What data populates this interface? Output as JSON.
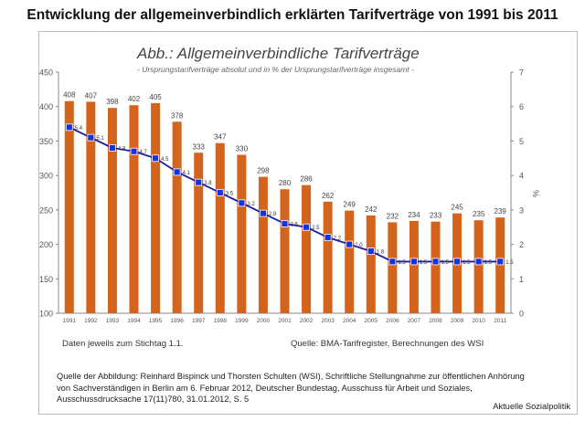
{
  "page": {
    "title": "Entwicklung der allgemeinverbindlich erklärten Tarifverträge von 1991 bis 2011",
    "brand": "Aktuelle Sozialpolitik"
  },
  "figure": {
    "title": "Abb.: Allgemeinverbindliche Tarifverträge",
    "subtitle": "- Ursprungstarifverträge absolut und in % der Ursprungstarifverträge insgesamt -",
    "note_left": "Daten jeweils zum Stichtag 1.1.",
    "note_right": "Quelle: BMA-Tarifregister, Berechnungen des WSI"
  },
  "source": {
    "text": "Quelle der Abbildung: Reinhard Bispinck und Thorsten Schulten (WSI), Schriftliche Stellungnahme zur öffentlichen Anhörung von Sachverständigen in Berlin am 6. Februar 2012, Deutscher Bundestag, Ausschuss für Arbeit und Soziales, Ausschussdrucksache 17(11)780, 31.01.2012, S. 5"
  },
  "colors": {
    "bar": "#d4631b",
    "line": "#1a1aa6",
    "marker": "#1432e0",
    "axis_text": "#555555"
  },
  "chart_data": {
    "type": "bar",
    "categories": [
      "1991",
      "1992",
      "1993",
      "1994",
      "1995",
      "1996",
      "1997",
      "1998",
      "1999",
      "2000",
      "2001",
      "2002",
      "2003",
      "2004",
      "2005",
      "2006",
      "2007",
      "2008",
      "2009",
      "2010",
      "2011"
    ],
    "series": [
      {
        "type": "bar",
        "axis": "left",
        "values": [
          408,
          407,
          398,
          402,
          405,
          378,
          333,
          347,
          330,
          298,
          280,
          286,
          262,
          249,
          242,
          232,
          234,
          233,
          245,
          235,
          239
        ]
      },
      {
        "type": "line",
        "axis": "right",
        "values": [
          5.4,
          5.1,
          4.8,
          4.7,
          4.5,
          4.1,
          3.8,
          3.5,
          3.2,
          2.9,
          2.6,
          2.5,
          2.2,
          2.0,
          1.8,
          1.5,
          1.5,
          1.5,
          1.5,
          1.5,
          1.5
        ]
      }
    ],
    "y_left": {
      "min": 100,
      "max": 450,
      "ticks": [
        100,
        150,
        200,
        250,
        300,
        350,
        400,
        450
      ]
    },
    "y_right": {
      "min": 0,
      "max": 7,
      "ticks": [
        0,
        1,
        2,
        3,
        4,
        5,
        6,
        7
      ],
      "label": "%"
    },
    "grid": false,
    "legend": "none"
  }
}
